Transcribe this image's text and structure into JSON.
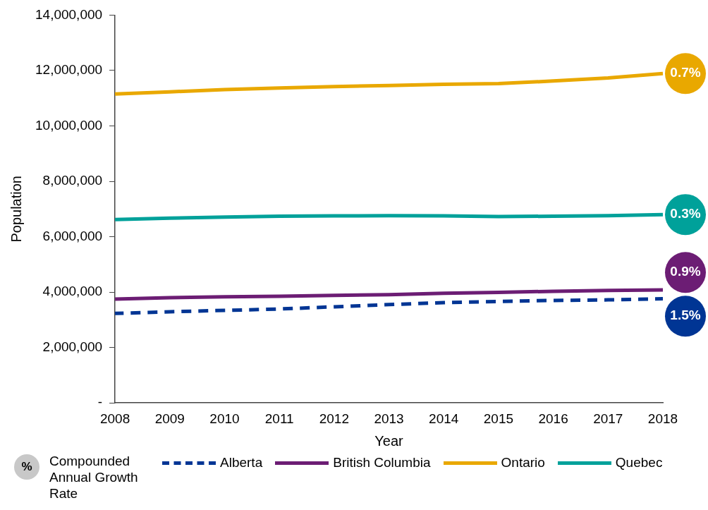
{
  "chart_data": {
    "type": "line",
    "xlabel": "Year",
    "ylabel": "Population",
    "categories": [
      "2008",
      "2009",
      "2010",
      "2011",
      "2012",
      "2013",
      "2014",
      "2015",
      "2016",
      "2017",
      "2018"
    ],
    "series": [
      {
        "name": "Alberta",
        "color": "#003594",
        "line_style": "dashed",
        "values": [
          3230000,
          3290000,
          3340000,
          3390000,
          3470000,
          3550000,
          3620000,
          3660000,
          3700000,
          3720000,
          3760000
        ]
      },
      {
        "name": "British Columbia",
        "color": "#6c1d74",
        "values": [
          3750000,
          3800000,
          3830000,
          3850000,
          3880000,
          3910000,
          3960000,
          3990000,
          4030000,
          4060000,
          4080000
        ]
      },
      {
        "name": "Ontario",
        "color": "#e9a800",
        "values": [
          11150000,
          11230000,
          11310000,
          11370000,
          11420000,
          11460000,
          11500000,
          11530000,
          11620000,
          11730000,
          11890000
        ]
      },
      {
        "name": "Quebec",
        "color": "#00a19a",
        "values": [
          6620000,
          6670000,
          6710000,
          6740000,
          6750000,
          6760000,
          6750000,
          6730000,
          6740000,
          6760000,
          6800000
        ]
      }
    ],
    "ylim": [
      0,
      14000000
    ],
    "yticks": [
      {
        "value": 0,
        "label": "-"
      },
      {
        "value": 2000000,
        "label": "2,000,000"
      },
      {
        "value": 4000000,
        "label": "4,000,000"
      },
      {
        "value": 6000000,
        "label": "6,000,000"
      },
      {
        "value": 8000000,
        "label": "8,000,000"
      },
      {
        "value": 10000000,
        "label": "10,000,000"
      },
      {
        "value": 12000000,
        "label": "12,000,000"
      },
      {
        "value": 14000000,
        "label": "14,000,000"
      }
    ],
    "grid": false,
    "legend": "bottom",
    "marker": "none",
    "line_style": "solid",
    "legend_title": "Compounded Annual Growth Rate",
    "annotations": [
      "%",
      {
        "text": "1.5%",
        "x": "2018",
        "y": 3760000
      },
      {
        "text": "0.9%",
        "x": "2018",
        "y": 4080000
      },
      {
        "text": "0.7%",
        "x": "2018",
        "y": 11890000
      },
      {
        "text": "0.3%",
        "x": "2018",
        "y": 6800000
      }
    ]
  }
}
